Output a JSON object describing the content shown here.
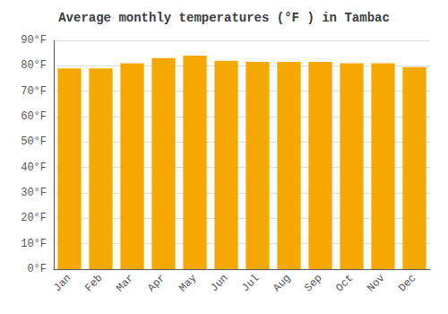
{
  "chart_data": {
    "type": "bar",
    "title": "Average monthly temperatures (°F ) in Tambac",
    "categories": [
      "Jan",
      "Feb",
      "Mar",
      "Apr",
      "May",
      "Jun",
      "Jul",
      "Aug",
      "Sep",
      "Oct",
      "Nov",
      "Dec"
    ],
    "values": [
      79,
      79,
      81,
      83,
      84,
      82,
      81.5,
      81.5,
      81.5,
      81,
      81,
      79.5
    ],
    "color": "#F5A800",
    "ylim": [
      0,
      90
    ],
    "yticks": [
      {
        "value": 0,
        "label": "0°F"
      },
      {
        "value": 10,
        "label": "10°F"
      },
      {
        "value": 20,
        "label": "20°F"
      },
      {
        "value": 30,
        "label": "30°F"
      },
      {
        "value": 40,
        "label": "40°F"
      },
      {
        "value": 50,
        "label": "50°F"
      },
      {
        "value": 60,
        "label": "60°F"
      },
      {
        "value": 70,
        "label": "70°F"
      },
      {
        "value": 80,
        "label": "80°F"
      },
      {
        "value": 90,
        "label": "90°F"
      }
    ],
    "grid": true
  }
}
